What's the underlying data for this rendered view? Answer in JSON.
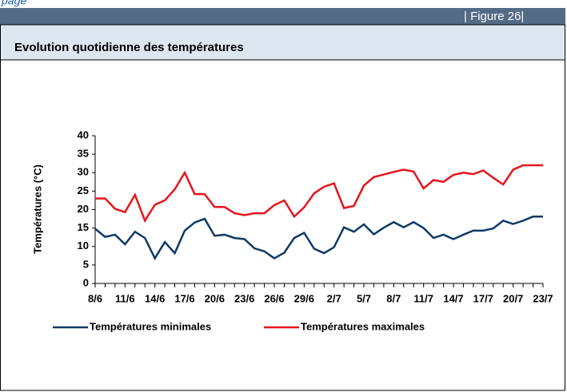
{
  "page_label": "page",
  "figure_label": "| Figure 26|",
  "chart_data": {
    "type": "line",
    "title": "Evolution quotidienne des températures",
    "y_label": "Températures  (°C)",
    "categories": [
      "8/6",
      null,
      null,
      "11/6",
      null,
      null,
      "14/6",
      null,
      null,
      "17/6",
      null,
      null,
      "20/6",
      null,
      null,
      "23/6",
      null,
      null,
      "26/6",
      null,
      null,
      "29/6",
      null,
      null,
      "2/7",
      null,
      null,
      "5/7",
      null,
      null,
      "8/7",
      null,
      null,
      "11/7",
      null,
      null,
      "14/7",
      null,
      null,
      "17/7",
      null,
      null,
      "20/7",
      null,
      null,
      "23/7"
    ],
    "series": [
      {
        "name": "Températures minimales",
        "color": "#0d3a66",
        "values": [
          14.8,
          12.6,
          13.2,
          10.6,
          14,
          12.3,
          6.8,
          11.2,
          8.2,
          14.3,
          16.5,
          17.5,
          12.9,
          13.2,
          12.3,
          12,
          9.5,
          8.7,
          6.8,
          8.3,
          12.3,
          13.7,
          9.4,
          8.2,
          9.8,
          15.2,
          14,
          16,
          13.3,
          15.1,
          16.6,
          15.2,
          16.6,
          15,
          12.3,
          13.2,
          12,
          13.2,
          14.3,
          14.3,
          14.9,
          17,
          16.1,
          17,
          18.1,
          18.1
        ]
      },
      {
        "name": "Températures maximales",
        "color": "#e8141c",
        "values": [
          23,
          23,
          20.2,
          19.3,
          24,
          17,
          21.3,
          22.5,
          25.5,
          30,
          24.2,
          24.2,
          20.7,
          20.7,
          19,
          18.5,
          19,
          19,
          21.2,
          22.5,
          18.1,
          20.6,
          24.4,
          26.2,
          27.1,
          20.4,
          21,
          26.5,
          28.8,
          29.5,
          30.2,
          30.8,
          30.3,
          25.7,
          28,
          27.5,
          29.4,
          30,
          29.6,
          30.6,
          28.6,
          26.8,
          30.8,
          32,
          32,
          32
        ]
      }
    ],
    "ylim": [
      0,
      40
    ],
    "yticks": [
      0,
      5,
      10,
      15,
      20,
      25,
      30,
      35,
      40
    ],
    "legend": "bottom"
  }
}
